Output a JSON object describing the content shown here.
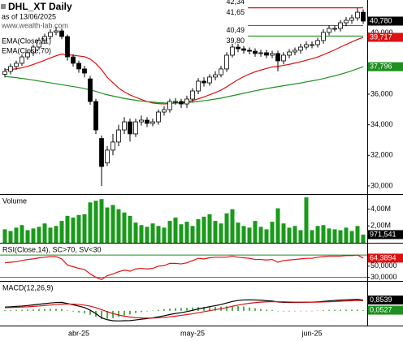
{
  "chart_data": [
    {
      "type": "candlestick",
      "title": "DHL_XT Daily",
      "subtitle": "as of 13/06/2025",
      "source": "www.wealth-lab.com",
      "categories": [
        null,
        null,
        null,
        null,
        null,
        null,
        null,
        null,
        null,
        null,
        null,
        null,
        null,
        "abr-25",
        null,
        null,
        null,
        null,
        null,
        null,
        null,
        null,
        null,
        null,
        null,
        null,
        null,
        null,
        null,
        null,
        null,
        null,
        null,
        "may-25",
        null,
        null,
        null,
        null,
        null,
        null,
        null,
        null,
        null,
        null,
        null,
        null,
        null,
        null,
        null,
        null,
        null,
        null,
        null,
        null,
        "jun-25",
        null,
        null,
        null,
        null,
        null,
        null,
        null,
        null,
        null
      ],
      "open": [
        37.3,
        37.49,
        37.81,
        38.02,
        38.44,
        38.71,
        39.08,
        39.51,
        39.77,
        40.04,
        40.14,
        39.77,
        38.44,
        38.02,
        37.65,
        37.0,
        35.52,
        33.1,
        31.5,
        32.34,
        32.87,
        33.66,
        34.19,
        33.4,
        34.19,
        34.3,
        34.09,
        34.19,
        34.83,
        34.99,
        35.52,
        35.52,
        35.36,
        35.68,
        36.21,
        36.85,
        36.74,
        37.12,
        37.27,
        37.65,
        38.55,
        39.08,
        38.97,
        38.87,
        38.81,
        38.66,
        38.71,
        38.55,
        38.66,
        38.18,
        38.55,
        38.76,
        38.87,
        39.08,
        39.24,
        39.24,
        39.51,
        40.04,
        40.3,
        40.3,
        40.67,
        40.83,
        40.99,
        41.36
      ],
      "high": [
        37.7,
        38.0,
        38.2,
        38.6,
        38.9,
        39.25,
        39.7,
        39.95,
        40.25,
        40.4,
        40.3,
        39.9,
        38.6,
        38.2,
        37.85,
        37.2,
        35.7,
        33.3,
        32.6,
        33.4,
        34.0,
        34.5,
        34.4,
        34.4,
        34.6,
        34.5,
        34.4,
        35.0,
        35.2,
        35.7,
        35.75,
        35.7,
        35.9,
        36.4,
        37.05,
        37.1,
        37.3,
        37.5,
        37.85,
        38.75,
        39.3,
        39.3,
        39.15,
        39.05,
        39.0,
        38.9,
        38.9,
        38.85,
        38.85,
        38.75,
        38.95,
        39.05,
        39.3,
        39.45,
        39.45,
        39.7,
        40.25,
        40.5,
        40.5,
        40.85,
        41.05,
        41.2,
        41.65,
        41.55
      ],
      "low": [
        37.1,
        37.3,
        37.6,
        37.85,
        38.25,
        38.5,
        38.9,
        39.3,
        39.6,
        39.85,
        39.6,
        38.2,
        37.8,
        37.4,
        37.1,
        35.3,
        33.4,
        30.0,
        31.3,
        32.0,
        32.6,
        33.4,
        32.9,
        33.2,
        33.95,
        33.85,
        33.9,
        34.0,
        34.6,
        34.8,
        35.3,
        35.1,
        35.1,
        35.5,
        36.0,
        36.5,
        36.55,
        36.9,
        37.1,
        37.45,
        38.4,
        38.75,
        38.65,
        38.6,
        38.45,
        38.45,
        38.35,
        38.35,
        37.5,
        37.95,
        38.35,
        38.55,
        38.65,
        38.9,
        39.0,
        39.05,
        39.3,
        39.85,
        40.1,
        40.1,
        40.45,
        40.6,
        40.8,
        40.6
      ],
      "close": [
        37.49,
        37.81,
        38.02,
        38.44,
        38.71,
        39.08,
        39.51,
        39.77,
        40.04,
        40.14,
        39.77,
        38.44,
        38.02,
        37.65,
        37.38,
        35.52,
        33.66,
        31.27,
        32.34,
        32.87,
        33.66,
        34.19,
        33.4,
        34.19,
        34.3,
        34.09,
        34.19,
        34.83,
        34.99,
        35.52,
        35.52,
        35.36,
        35.68,
        36.21,
        36.85,
        36.74,
        37.12,
        37.27,
        37.65,
        38.55,
        39.08,
        38.97,
        38.87,
        38.81,
        38.66,
        38.71,
        38.55,
        38.66,
        38.18,
        38.55,
        38.76,
        38.87,
        39.08,
        39.24,
        39.24,
        39.51,
        40.04,
        40.3,
        40.3,
        40.67,
        40.83,
        40.99,
        41.36,
        40.78
      ],
      "close_label": "40,780",
      "series": [
        {
          "name": "EMA(Close,21)",
          "color": "#dd1111",
          "last_label": "39,717",
          "values": [
            37.6,
            37.62,
            37.66,
            37.73,
            37.82,
            37.94,
            38.08,
            38.22,
            38.37,
            38.51,
            38.62,
            38.57,
            38.55,
            38.5,
            38.45,
            38.3,
            38.0,
            37.6,
            37.1,
            36.75,
            36.4,
            36.15,
            35.95,
            35.8,
            35.65,
            35.52,
            35.42,
            35.38,
            35.36,
            35.38,
            35.42,
            35.45,
            35.5,
            35.58,
            35.7,
            35.82,
            35.96,
            36.1,
            36.26,
            36.48,
            36.72,
            36.95,
            37.15,
            37.32,
            37.46,
            37.58,
            37.68,
            37.78,
            37.82,
            37.88,
            37.95,
            38.03,
            38.12,
            38.22,
            38.32,
            38.43,
            38.58,
            38.74,
            38.9,
            39.08,
            39.25,
            39.42,
            39.58,
            39.717
          ]
        },
        {
          "name": "EMA(Close,70)",
          "color": "#1f8f1f",
          "last_label": "37,796",
          "values": [
            37.15,
            37.12,
            37.08,
            37.03,
            36.98,
            36.92,
            36.86,
            36.8,
            36.74,
            36.68,
            36.62,
            36.56,
            36.5,
            36.44,
            36.36,
            36.28,
            36.18,
            36.06,
            35.96,
            35.88,
            35.8,
            35.72,
            35.66,
            35.6,
            35.55,
            35.51,
            35.48,
            35.45,
            35.43,
            35.42,
            35.42,
            35.43,
            35.45,
            35.48,
            35.52,
            35.57,
            35.62,
            35.68,
            35.74,
            35.82,
            35.9,
            35.98,
            36.06,
            36.14,
            36.22,
            36.29,
            36.36,
            36.43,
            36.49,
            36.55,
            36.61,
            36.67,
            36.73,
            36.8,
            36.87,
            36.94,
            37.02,
            37.11,
            37.2,
            37.3,
            37.41,
            37.53,
            37.66,
            37.796
          ]
        }
      ],
      "levels": [
        {
          "value": 42.34,
          "label": "42,34",
          "color": "#dd1111"
        },
        {
          "value": 41.65,
          "label": "41,65",
          "color": "#dd1111"
        },
        {
          "value": 40.49,
          "label": "40,49",
          "color": "#1f8f1f"
        },
        {
          "value": 39.8,
          "label": "39,80",
          "color": "#1f8f1f"
        }
      ],
      "ylim": [
        29.52,
        42.16
      ],
      "yticks": [
        {
          "value": 30,
          "label": "30,000"
        },
        {
          "value": 32,
          "label": "32,000"
        },
        {
          "value": 34,
          "label": "34,000"
        },
        {
          "value": 36,
          "label": "36,000"
        },
        {
          "value": 40,
          "label": "40,000"
        }
      ]
    },
    {
      "type": "bar",
      "title": "Volume",
      "color": "#1a9a1a",
      "last_label": "971,541",
      "values": [
        1600000,
        1400000,
        1800000,
        2100000,
        1500000,
        1700000,
        1900000,
        2300000,
        1800000,
        2000000,
        2600000,
        3200000,
        3000000,
        3300000,
        3400000,
        4800000,
        5000000,
        5200000,
        4200000,
        4500000,
        4000000,
        3600000,
        3200000,
        2400000,
        2100000,
        1900000,
        2300000,
        2000000,
        1800000,
        2600000,
        3000000,
        2200000,
        2500000,
        2000000,
        2800000,
        3100000,
        3400000,
        2600000,
        2300000,
        3500000,
        4000000,
        2400000,
        2000000,
        1800000,
        2600000,
        1900000,
        1600000,
        2500000,
        4100000,
        2300000,
        1800000,
        2000000,
        1500000,
        5400000,
        1500000,
        2000000,
        2100000,
        1700000,
        1600000,
        1500000,
        1800000,
        1400000,
        2000000,
        971541
      ],
      "ylim": [
        0,
        5700000
      ],
      "yticks": [
        {
          "value": 4000000,
          "label": "4,00M"
        },
        {
          "value": 2000000,
          "label": "2,00M"
        }
      ]
    },
    {
      "type": "line",
      "title": "RSI(Close,14), SC>70, SV<30",
      "series": [
        {
          "color": "#dd1111",
          "last_label": "64,3894",
          "values": [
            56,
            57,
            58,
            60,
            62,
            63,
            65,
            66,
            67,
            67,
            63,
            52,
            49,
            46,
            44,
            36,
            30,
            26,
            33,
            36,
            40,
            43,
            41,
            45,
            46,
            45,
            46,
            50,
            51,
            55,
            55,
            54,
            56,
            60,
            64,
            63,
            65,
            66,
            66,
            66,
            68,
            66,
            65,
            64,
            62,
            62,
            61,
            62,
            57,
            60,
            61,
            62,
            63,
            64,
            64,
            66,
            67,
            68,
            68,
            68,
            69,
            69,
            70,
            64.3894
          ]
        }
      ],
      "levels": [
        70,
        30
      ],
      "level_color": "#1f8f1f",
      "ylim": [
        25,
        89
      ],
      "yticks": [
        {
          "value": 50,
          "label": "50,0000"
        },
        {
          "value": 30,
          "label": "30,0000"
        }
      ]
    },
    {
      "type": "line",
      "title": "MACD(12,26,9)",
      "series": [
        {
          "color": "#000000",
          "last_label": "0,8539",
          "values": [
            0.3,
            0.32,
            0.35,
            0.38,
            0.42,
            0.47,
            0.52,
            0.57,
            0.62,
            0.66,
            0.67,
            0.58,
            0.48,
            0.37,
            0.26,
            0.05,
            -0.22,
            -0.55,
            -0.7,
            -0.78,
            -0.8,
            -0.78,
            -0.77,
            -0.72,
            -0.66,
            -0.61,
            -0.55,
            -0.47,
            -0.39,
            -0.29,
            -0.21,
            -0.14,
            -0.06,
            0.04,
            0.15,
            0.24,
            0.33,
            0.41,
            0.5,
            0.62,
            0.74,
            0.82,
            0.86,
            0.87,
            0.86,
            0.84,
            0.8,
            0.78,
            0.7,
            0.67,
            0.66,
            0.66,
            0.67,
            0.68,
            0.69,
            0.71,
            0.75,
            0.79,
            0.82,
            0.85,
            0.87,
            0.89,
            0.91,
            0.8539
          ]
        },
        {
          "color": "#dd1111",
          "values": [
            0.25,
            0.26,
            0.28,
            0.3,
            0.32,
            0.35,
            0.38,
            0.42,
            0.46,
            0.5,
            0.53,
            0.54,
            0.53,
            0.5,
            0.45,
            0.37,
            0.25,
            0.09,
            -0.07,
            -0.21,
            -0.33,
            -0.42,
            -0.49,
            -0.54,
            -0.56,
            -0.57,
            -0.57,
            -0.55,
            -0.52,
            -0.47,
            -0.42,
            -0.36,
            -0.3,
            -0.23,
            -0.15,
            -0.07,
            0.01,
            0.09,
            0.17,
            0.26,
            0.36,
            0.45,
            0.53,
            0.6,
            0.65,
            0.69,
            0.71,
            0.73,
            0.72,
            0.71,
            0.7,
            0.69,
            0.69,
            0.69,
            0.69,
            0.69,
            0.7,
            0.72,
            0.74,
            0.76,
            0.78,
            0.8,
            0.82,
            0.8012
          ]
        }
      ],
      "histogram": {
        "color": "#1f8f1f",
        "last_label": "0,0527",
        "values": [
          0.05,
          0.06,
          0.07,
          0.08,
          0.1,
          0.12,
          0.14,
          0.15,
          0.16,
          0.16,
          0.14,
          0.04,
          -0.05,
          -0.13,
          -0.19,
          -0.32,
          -0.47,
          -0.64,
          -0.63,
          -0.57,
          -0.47,
          -0.36,
          -0.28,
          -0.18,
          -0.1,
          -0.04,
          0.02,
          0.08,
          0.13,
          0.18,
          0.21,
          0.22,
          0.24,
          0.27,
          0.3,
          0.31,
          0.32,
          0.32,
          0.33,
          0.36,
          0.38,
          0.37,
          0.33,
          0.27,
          0.21,
          0.15,
          0.09,
          0.05,
          -0.02,
          -0.04,
          -0.04,
          -0.03,
          -0.02,
          -0.01,
          0.0,
          0.02,
          0.05,
          0.07,
          0.08,
          0.09,
          0.09,
          0.09,
          0.09,
          0.0527
        ]
      },
      "ylim": [
        -1.1,
        2.3
      ]
    }
  ]
}
